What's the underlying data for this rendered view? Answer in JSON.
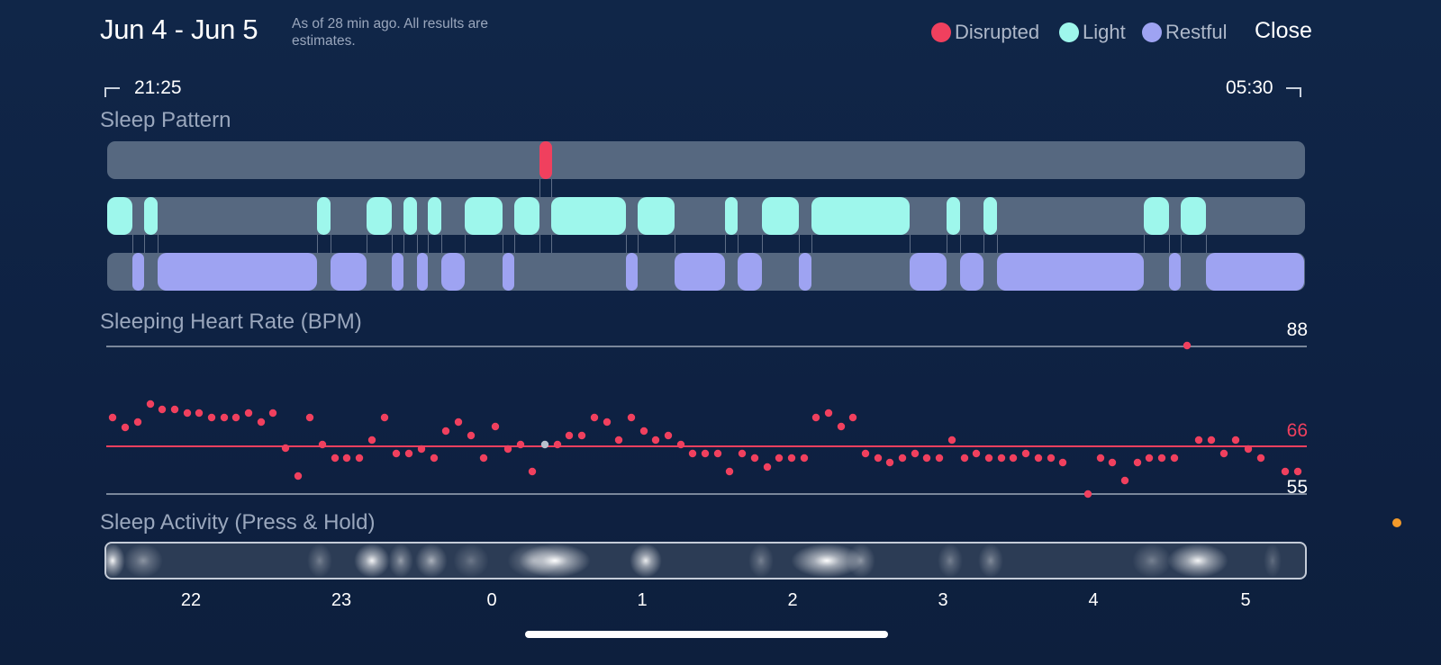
{
  "header": {
    "date_range": "Jun 4 - Jun 5",
    "subtitle": "As of 28 min ago. All results are estimates.",
    "close_label": "Close"
  },
  "legend": [
    {
      "label": "Disrupted",
      "color": "#f0405e"
    },
    {
      "label": "Light",
      "color": "#9ef7ec"
    },
    {
      "label": "Restful",
      "color": "#9ea3f2"
    }
  ],
  "times": {
    "start": "21:25",
    "end": "05:30"
  },
  "sections": {
    "sleep_pattern": "Sleep Pattern",
    "heart_rate": "Sleeping Heart Rate (BPM)",
    "activity": "Sleep Activity (Press & Hold)"
  },
  "heart_rate": {
    "max_label": "88",
    "avg_label": "66",
    "min_label": "55"
  },
  "x_axis_labels": [
    "22",
    "23",
    "0",
    "1",
    "2",
    "3",
    "4",
    "5"
  ],
  "colors": {
    "disrupted": "#f0405e",
    "light": "#9ef7ec",
    "restful": "#9ea3f2",
    "lane": "#566880",
    "background": "#102648"
  }
}
